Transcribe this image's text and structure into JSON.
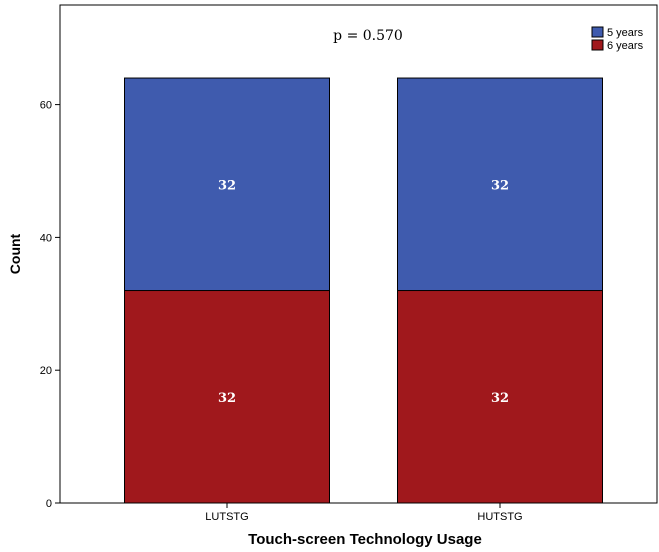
{
  "chart_data": {
    "type": "bar",
    "stacked": true,
    "categories": [
      "LUTSTG",
      "HUTSTG"
    ],
    "series": [
      {
        "name": "6 years",
        "values": [
          32,
          32
        ],
        "color": "#A0181C"
      },
      {
        "name": "5 years",
        "values": [
          32,
          32
        ],
        "color": "#3F5BAE"
      }
    ],
    "xlabel": "Touch-screen Technology Usage",
    "ylabel": "Count",
    "ylim": [
      0,
      75
    ],
    "yticks": [
      0,
      20,
      40,
      60
    ],
    "annotation": "p = 0.570",
    "legend": {
      "placement": "top-right",
      "entries": [
        "5 years",
        "6 years"
      ]
    },
    "grid": false,
    "data_labels": true
  }
}
